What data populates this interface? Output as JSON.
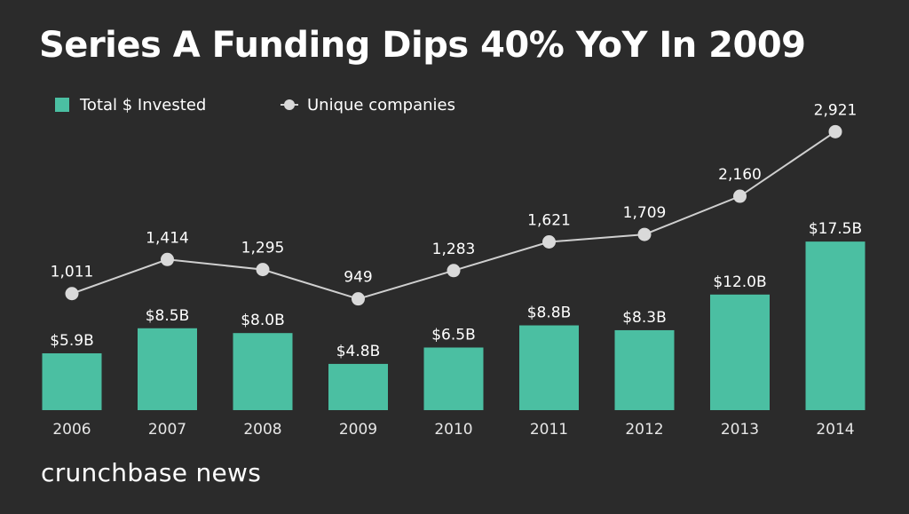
{
  "title": "Series A Funding Dips 40% YoY In 2009",
  "brand": "crunchbase news",
  "colors": {
    "background": "#2b2b2b",
    "bar": "#4bbfa2",
    "line": "#cfcfcf",
    "point": "#d9d9d9",
    "text": "#ffffff"
  },
  "chart_data": {
    "type": "bar",
    "categories": [
      "2006",
      "2007",
      "2008",
      "2009",
      "2010",
      "2011",
      "2012",
      "2013",
      "2014"
    ],
    "series": [
      {
        "name": "Total $ Invested",
        "type": "bar",
        "values": [
          5.9,
          8.5,
          8.0,
          4.8,
          6.5,
          8.8,
          8.3,
          12.0,
          17.5
        ],
        "labels": [
          "$5.9B",
          "$8.5B",
          "$8.0B",
          "$4.8B",
          "$6.5B",
          "$8.8B",
          "$8.3B",
          "$12.0B",
          "$17.5B"
        ]
      },
      {
        "name": "Unique companies",
        "type": "line",
        "values": [
          1011,
          1414,
          1295,
          949,
          1283,
          1621,
          1709,
          2160,
          2921
        ],
        "labels": [
          "1,011",
          "1,414",
          "1,295",
          "949",
          "1,283",
          "1,621",
          "1,709",
          "2,160",
          "2,921"
        ]
      }
    ],
    "legend_position": "top-left",
    "grid": false
  }
}
